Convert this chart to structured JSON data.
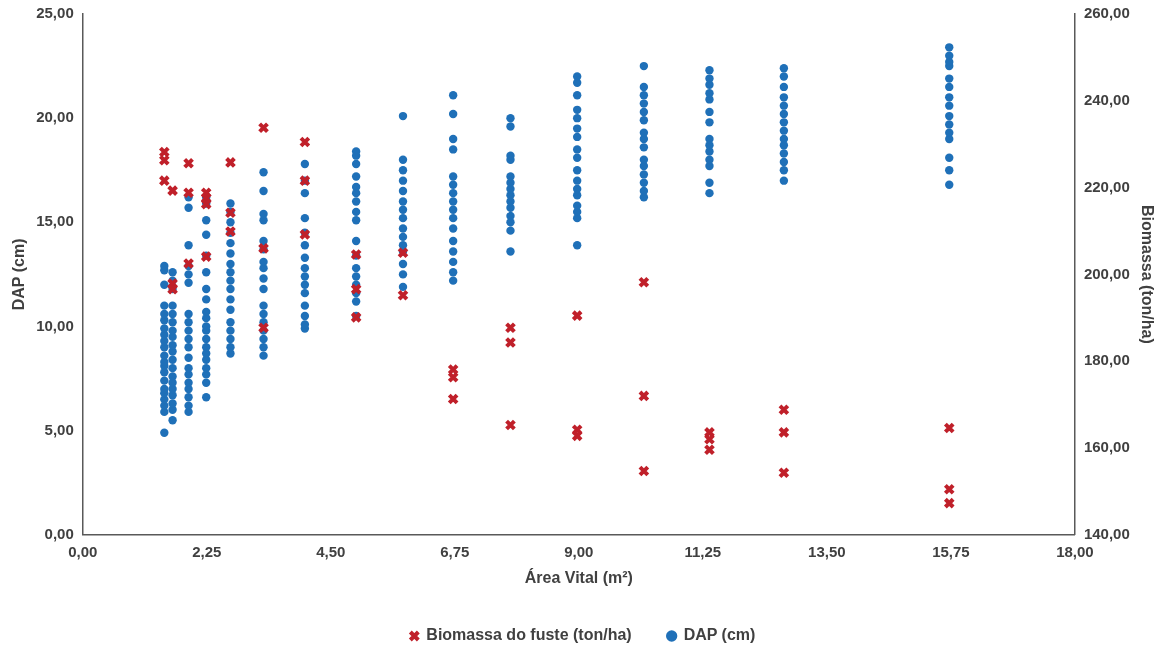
{
  "chart_data": {
    "type": "scatter",
    "xlabel": "Área Vital (m²)",
    "ylabel": "DAP (cm)",
    "y2label": "Biomassa (ton/ha)",
    "xlim": [
      0,
      18
    ],
    "xticks": [
      {
        "value": 0,
        "label": "0,00"
      },
      {
        "value": 2.25,
        "label": "2,25"
      },
      {
        "value": 4.5,
        "label": "4,50"
      },
      {
        "value": 6.75,
        "label": "6,75"
      },
      {
        "value": 9,
        "label": "9,00"
      },
      {
        "value": 11.25,
        "label": "11,25"
      },
      {
        "value": 13.5,
        "label": "13,50"
      },
      {
        "value": 15.75,
        "label": "15,75"
      },
      {
        "value": 18,
        "label": "18,00"
      }
    ],
    "ylim": [
      0,
      25
    ],
    "yticks": [
      {
        "value": 0,
        "label": "0,00"
      },
      {
        "value": 5,
        "label": "5,00"
      },
      {
        "value": 10,
        "label": "10,00"
      },
      {
        "value": 15,
        "label": "15,00"
      },
      {
        "value": 20,
        "label": "20,00"
      },
      {
        "value": 25,
        "label": "25,00"
      }
    ],
    "y2lim": [
      140,
      260
    ],
    "y2ticks": [
      {
        "value": 140,
        "label": "140,00"
      },
      {
        "value": 160,
        "label": "160,00"
      },
      {
        "value": 180,
        "label": "180,00"
      },
      {
        "value": 200,
        "label": "200,00"
      },
      {
        "value": 220,
        "label": "220,00"
      },
      {
        "value": 240,
        "label": "240,00"
      },
      {
        "value": 260,
        "label": "260,00"
      }
    ],
    "grid": false,
    "legend": "bottom",
    "series": [
      {
        "name": "DAP (cm)",
        "color": "#1f70b8",
        "marker": "circle",
        "x": [
          1.48,
          1.48,
          1.48,
          1.48,
          1.48,
          1.48,
          1.48,
          1.48,
          1.48,
          1.48,
          1.48,
          1.48,
          1.48,
          1.48,
          1.48,
          1.48,
          1.48,
          1.48,
          1.48,
          1.48,
          1.48,
          1.63,
          1.63,
          1.63,
          1.63,
          1.63,
          1.63,
          1.63,
          1.63,
          1.63,
          1.63,
          1.63,
          1.63,
          1.63,
          1.63,
          1.63,
          1.63,
          1.63,
          1.63,
          1.63,
          1.92,
          1.92,
          1.92,
          1.92,
          1.92,
          1.92,
          1.92,
          1.92,
          1.92,
          1.92,
          1.92,
          1.92,
          1.92,
          1.92,
          1.92,
          1.92,
          1.92,
          1.92,
          1.92,
          2.24,
          2.24,
          2.24,
          2.24,
          2.24,
          2.24,
          2.24,
          2.24,
          2.24,
          2.24,
          2.24,
          2.24,
          2.24,
          2.24,
          2.24,
          2.24,
          2.24,
          2.24,
          2.24,
          2.24,
          2.68,
          2.68,
          2.68,
          2.68,
          2.68,
          2.68,
          2.68,
          2.68,
          2.68,
          2.68,
          2.68,
          2.68,
          2.68,
          2.68,
          2.68,
          2.68,
          2.68,
          3.28,
          3.28,
          3.28,
          3.28,
          3.28,
          3.28,
          3.28,
          3.28,
          3.28,
          3.28,
          3.28,
          3.28,
          3.28,
          3.28,
          3.28,
          3.28,
          3.28,
          4.03,
          4.03,
          4.03,
          4.03,
          4.03,
          4.03,
          4.03,
          4.03,
          4.03,
          4.03,
          4.03,
          4.03,
          4.03,
          4.03,
          4.03,
          4.96,
          4.96,
          4.96,
          4.96,
          4.96,
          4.96,
          4.96,
          4.96,
          4.96,
          4.96,
          4.96,
          4.96,
          4.96,
          4.96,
          4.96,
          4.96,
          4.96,
          5.81,
          5.81,
          5.81,
          5.81,
          5.81,
          5.81,
          5.81,
          5.81,
          5.81,
          5.81,
          5.81,
          5.81,
          5.81,
          5.81,
          5.81,
          6.72,
          6.72,
          6.72,
          6.72,
          6.72,
          6.72,
          6.72,
          6.72,
          6.72,
          6.72,
          6.72,
          6.72,
          6.72,
          6.72,
          6.72,
          6.72,
          7.76,
          7.76,
          7.76,
          7.76,
          7.76,
          7.76,
          7.76,
          7.76,
          7.76,
          7.76,
          7.76,
          7.76,
          7.76,
          7.76,
          8.97,
          8.97,
          8.97,
          8.97,
          8.97,
          8.97,
          8.97,
          8.97,
          8.97,
          8.97,
          8.97,
          8.97,
          8.97,
          8.97,
          8.97,
          8.97,
          8.97,
          10.18,
          10.18,
          10.18,
          10.18,
          10.18,
          10.18,
          10.18,
          10.18,
          10.18,
          10.18,
          10.18,
          10.18,
          10.18,
          10.18,
          10.18,
          11.37,
          11.37,
          11.37,
          11.37,
          11.37,
          11.37,
          11.37,
          11.37,
          11.37,
          11.37,
          11.37,
          11.37,
          11.37,
          11.37,
          12.72,
          12.72,
          12.72,
          12.72,
          12.72,
          12.72,
          12.72,
          12.72,
          12.72,
          12.72,
          12.72,
          12.72,
          12.72,
          12.72,
          15.72,
          15.72,
          15.72,
          15.72,
          15.72,
          15.72,
          15.72,
          15.72,
          15.72,
          15.72,
          15.72,
          15.72,
          15.72,
          15.72,
          15.72
        ],
        "values": [
          4.9,
          5.9,
          6.2,
          6.5,
          6.8,
          7.0,
          7.4,
          7.8,
          8.1,
          8.3,
          8.6,
          9.0,
          9.3,
          9.6,
          9.9,
          10.3,
          10.6,
          11.0,
          12.0,
          12.7,
          12.9,
          5.5,
          6.0,
          6.3,
          6.7,
          7.0,
          7.3,
          7.6,
          8.0,
          8.4,
          8.8,
          9.1,
          9.5,
          9.8,
          10.2,
          10.6,
          11.0,
          11.8,
          12.2,
          12.6,
          5.9,
          6.2,
          6.6,
          7.0,
          7.3,
          7.7,
          8.0,
          8.5,
          9.0,
          9.4,
          9.8,
          10.2,
          10.6,
          12.1,
          12.5,
          12.9,
          13.9,
          15.7,
          16.2,
          6.6,
          7.3,
          7.7,
          8.0,
          8.4,
          8.7,
          9.0,
          9.4,
          9.8,
          10.0,
          10.4,
          10.7,
          11.3,
          11.8,
          12.6,
          13.4,
          14.4,
          15.1,
          15.9,
          16.2,
          8.7,
          9.0,
          9.4,
          9.8,
          10.2,
          10.8,
          11.3,
          11.8,
          12.2,
          12.6,
          13.0,
          13.5,
          14.0,
          14.5,
          15.0,
          15.5,
          15.9,
          8.6,
          9.0,
          9.4,
          9.8,
          10.2,
          10.6,
          11.0,
          11.8,
          12.3,
          12.8,
          13.1,
          13.7,
          14.1,
          15.1,
          15.4,
          16.5,
          17.4,
          9.9,
          10.1,
          10.5,
          11.0,
          11.6,
          12.0,
          12.4,
          12.8,
          13.3,
          13.9,
          14.5,
          15.2,
          16.4,
          17.0,
          17.8,
          10.5,
          11.2,
          11.6,
          12.0,
          12.4,
          12.8,
          13.4,
          14.1,
          15.1,
          15.5,
          16.0,
          16.4,
          16.7,
          17.2,
          17.8,
          18.2,
          18.4,
          11.9,
          12.5,
          13.0,
          13.6,
          13.9,
          14.3,
          14.7,
          15.2,
          15.6,
          16.0,
          16.5,
          17.0,
          17.5,
          18.0,
          20.1,
          12.2,
          12.6,
          13.1,
          13.6,
          14.1,
          14.7,
          15.2,
          15.6,
          16.0,
          16.4,
          16.8,
          17.2,
          18.5,
          19.0,
          20.2,
          21.1,
          13.6,
          14.6,
          15.0,
          15.3,
          15.7,
          16.0,
          16.3,
          16.6,
          16.9,
          17.2,
          18.0,
          18.2,
          19.6,
          20.0,
          13.9,
          15.2,
          15.5,
          15.8,
          16.3,
          16.6,
          17.0,
          17.5,
          18.1,
          18.5,
          19.1,
          19.5,
          20.0,
          20.4,
          21.1,
          21.7,
          22.0,
          16.2,
          16.5,
          16.9,
          17.3,
          17.7,
          18.0,
          18.6,
          19.0,
          19.3,
          19.9,
          20.3,
          20.7,
          21.1,
          21.5,
          22.5,
          16.4,
          16.9,
          17.7,
          18.0,
          18.4,
          18.7,
          19.0,
          19.8,
          20.3,
          20.9,
          21.2,
          21.6,
          21.9,
          22.3,
          17.0,
          17.5,
          17.9,
          18.3,
          18.7,
          19.0,
          19.4,
          19.8,
          20.2,
          20.6,
          21.0,
          21.5,
          22.0,
          22.4,
          16.8,
          17.5,
          18.1,
          19.0,
          19.3,
          19.7,
          20.1,
          20.6,
          21.0,
          21.5,
          21.9,
          22.5,
          22.7,
          23.0,
          23.4
        ]
      },
      {
        "name": "Biomassa do fuste (ton/ha)",
        "color": "#c0202a",
        "marker": "cross",
        "axis": "y2",
        "x": [
          1.48,
          1.48,
          1.48,
          1.63,
          1.63,
          1.63,
          1.92,
          1.92,
          1.92,
          2.24,
          2.24,
          2.24,
          2.24,
          2.68,
          2.68,
          2.68,
          3.28,
          3.28,
          3.28,
          4.03,
          4.03,
          4.03,
          4.96,
          4.96,
          4.96,
          5.81,
          5.81,
          6.72,
          6.72,
          6.72,
          7.76,
          7.76,
          7.76,
          8.97,
          8.97,
          8.97,
          10.18,
          10.18,
          10.18,
          11.37,
          11.37,
          11.37,
          12.72,
          12.72,
          12.72,
          15.72,
          15.72,
          15.72
        ],
        "values": [
          228.2,
          226.3,
          221.6,
          219.3,
          197.9,
          196.6,
          225.6,
          218.8,
          202.5,
          218.8,
          217.6,
          216.2,
          204.1,
          225.8,
          214.2,
          209.9,
          233.8,
          206.0,
          187.7,
          230.5,
          221.6,
          209.2,
          204.6,
          196.6,
          190.1,
          205.0,
          195.2,
          178.1,
          176.3,
          171.3,
          187.7,
          184.3,
          165.3,
          190.5,
          164.2,
          162.8,
          198.2,
          172.0,
          154.7,
          163.6,
          162.0,
          159.6,
          168.8,
          163.6,
          154.3,
          164.6,
          150.5,
          147.3
        ]
      }
    ]
  }
}
